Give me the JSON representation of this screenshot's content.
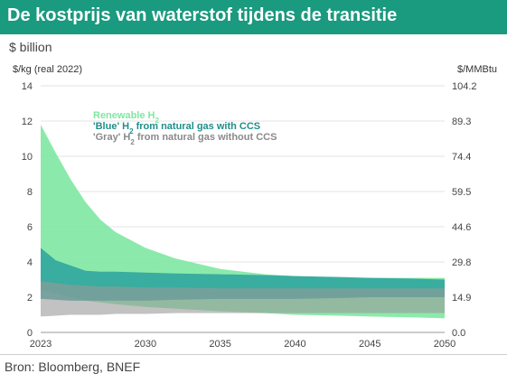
{
  "header": {
    "title": "De kostprijs van waterstof tijdens de transitie"
  },
  "unit_line": "$ billion",
  "source": "Bron: Bloomberg, BNEF",
  "colors": {
    "header_bg": "#1a9a7f",
    "renewable": "#7ee8a2",
    "blue": "#2aa29c",
    "gray": "#9a9a9a"
  },
  "chart_data": {
    "type": "area",
    "title": "",
    "ylabel_left": "$/kg (real 2022)",
    "ylabel_right": "$/MMBtu",
    "xlim": [
      2023,
      2050
    ],
    "ylim": [
      0,
      14
    ],
    "x_ticks": [
      "2023",
      "2030",
      "2035",
      "2040",
      "2045",
      "2050"
    ],
    "y_ticks_left": [
      "0",
      "2",
      "4",
      "6",
      "8",
      "10",
      "12",
      "14"
    ],
    "y_ticks_right": [
      "0.0",
      "14.9",
      "29.8",
      "44.6",
      "59.5",
      "74.4",
      "89.3",
      "104.2"
    ],
    "grid": true,
    "legend_position": "top-left",
    "legend": [
      {
        "pre": "Renewable H",
        "sub": "2",
        "post": "",
        "color": "#7ee8a2"
      },
      {
        "pre": "'Blue' H",
        "sub": "2",
        "post": " from natural gas with CCS",
        "color": "#1f8f8a"
      },
      {
        "pre": "'Gray' H",
        "sub": "2",
        "post": " from natural gas without CCS",
        "color": "#8a8a8a"
      }
    ],
    "x": [
      2023,
      2024,
      2025,
      2026,
      2027,
      2028,
      2030,
      2032,
      2035,
      2038,
      2040,
      2043,
      2045,
      2048,
      2050
    ],
    "series": [
      {
        "name": "Renewable H2",
        "color": "#7ee8a2",
        "low": [
          2.4,
          2.2,
          2.0,
          1.8,
          1.7,
          1.6,
          1.45,
          1.35,
          1.2,
          1.1,
          1.0,
          0.95,
          0.9,
          0.85,
          0.8
        ],
        "high": [
          11.8,
          10.2,
          8.7,
          7.4,
          6.4,
          5.7,
          4.8,
          4.2,
          3.6,
          3.3,
          3.2,
          3.1,
          3.1,
          3.1,
          3.1
        ]
      },
      {
        "name": "'Blue' H2 from natural gas with CCS",
        "color": "#2aa29c",
        "low": [
          1.9,
          1.85,
          1.8,
          1.8,
          1.8,
          1.8,
          1.8,
          1.85,
          1.9,
          1.9,
          1.9,
          1.95,
          2.0,
          2.0,
          2.0
        ],
        "high": [
          4.8,
          4.1,
          3.8,
          3.5,
          3.45,
          3.45,
          3.4,
          3.35,
          3.3,
          3.25,
          3.2,
          3.15,
          3.1,
          3.05,
          3.0
        ]
      },
      {
        "name": "'Gray' H2 from natural gas without CCS",
        "color": "#9a9a9a",
        "low": [
          0.9,
          0.95,
          1.0,
          1.0,
          1.0,
          1.05,
          1.05,
          1.1,
          1.1,
          1.1,
          1.1,
          1.1,
          1.1,
          1.1,
          1.1
        ],
        "high": [
          2.9,
          2.8,
          2.7,
          2.65,
          2.6,
          2.6,
          2.55,
          2.55,
          2.5,
          2.5,
          2.5,
          2.5,
          2.5,
          2.5,
          2.5
        ]
      }
    ]
  }
}
